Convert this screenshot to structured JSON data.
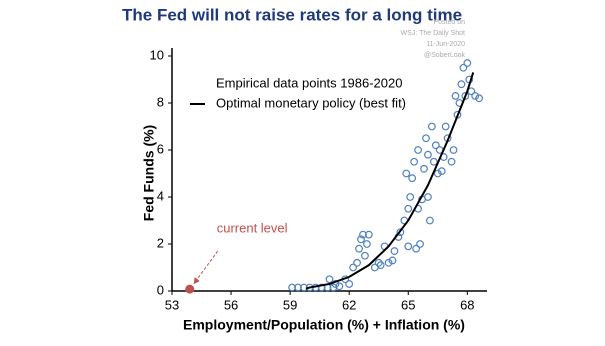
{
  "chart_data": {
    "type": "scatter",
    "title": "The Fed will not raise rates for a long time",
    "source": [
      "Posted on",
      "WSJ: The Daily Shot",
      "11-Jun-2020",
      "@SoberLook"
    ],
    "xlabel": "Employment/Population (%) + Inflation (%)",
    "ylabel": "Fed Funds (%)",
    "xlim": [
      53,
      69
    ],
    "xticks": [
      53,
      56,
      59,
      62,
      65,
      68
    ],
    "ylim": [
      0,
      10
    ],
    "yticks": [
      0,
      2,
      4,
      6,
      8,
      10
    ],
    "series": [
      {
        "name": "Empirical data points 1986-2020",
        "color": "#4f81bd",
        "x": [
          59.1,
          59.4,
          59.7,
          60.0,
          60.3,
          60.6,
          60.9,
          61.2,
          62.4,
          62.6,
          62.7,
          62.9,
          62.5,
          63.0,
          62.8,
          63.3,
          63.6,
          64.0,
          64.3,
          63.8,
          64.5,
          64.8,
          65.0,
          65.1,
          64.9,
          65.2,
          65.3,
          65.0,
          65.4,
          65.6,
          65.5,
          65.8,
          65.9,
          66.0,
          66.2,
          66.3,
          66.5,
          66.0,
          65.5,
          66.6,
          66.8,
          66.9,
          67.0,
          67.2,
          67.3,
          67.5,
          67.6,
          67.7,
          67.8,
          68.0,
          67.9,
          68.2,
          68.4,
          68.6,
          68.1,
          67.4,
          66.7,
          66.4,
          66.1,
          65.7,
          64.6,
          64.2,
          63.5,
          62.2,
          61.8,
          62.0,
          61.5,
          61.0,
          61.3
        ],
        "values": [
          0.15,
          0.15,
          0.15,
          0.15,
          0.15,
          0.15,
          0.15,
          0.15,
          1.2,
          2.2,
          2.4,
          2.0,
          1.8,
          2.4,
          1.5,
          1.0,
          1.1,
          1.2,
          1.7,
          1.9,
          2.3,
          3.0,
          3.5,
          4.0,
          5.0,
          4.8,
          5.5,
          1.9,
          1.8,
          2.0,
          6.0,
          5.2,
          6.5,
          5.8,
          7.0,
          5.5,
          5.0,
          4.0,
          3.5,
          6.0,
          5.7,
          7.0,
          6.5,
          5.5,
          6.0,
          7.5,
          8.0,
          8.8,
          9.5,
          9.7,
          8.3,
          8.5,
          8.3,
          8.2,
          9.0,
          8.3,
          5.1,
          6.2,
          3.0,
          3.9,
          2.5,
          1.3,
          1.2,
          1.0,
          0.5,
          0.3,
          0.2,
          0.5,
          0.3
        ]
      },
      {
        "name": "Optimal monetary policy (best fit)",
        "color": "#000000",
        "kind": "line",
        "x": [
          59.8,
          60,
          61,
          62,
          63,
          64,
          65,
          66,
          67,
          68,
          68.3
        ],
        "values": [
          0.1,
          0.15,
          0.3,
          0.6,
          1.1,
          1.9,
          3.0,
          4.5,
          6.4,
          8.5,
          9.3
        ]
      }
    ],
    "annotation": {
      "text": "current level",
      "x": 53.9,
      "y": 0.08,
      "color": "#c0504d"
    }
  }
}
